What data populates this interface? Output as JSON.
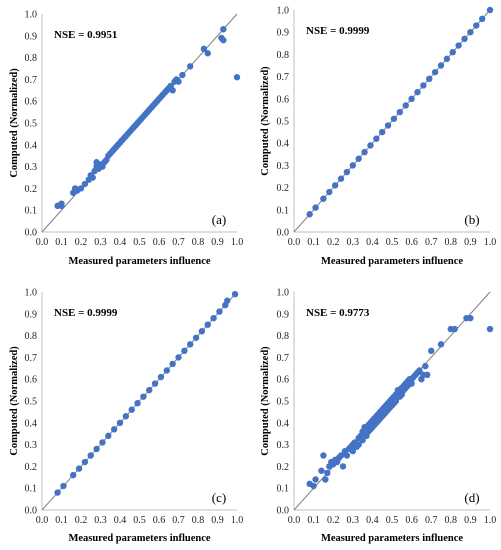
{
  "chart_data": [
    {
      "type": "scatter",
      "panel_label": "(a)",
      "annotation": "NSE = 0.9951",
      "xlabel": "Measured parameters influence",
      "ylabel": "Computed  (Normalized)",
      "xlim": [
        0,
        1
      ],
      "ylim": [
        0,
        1
      ],
      "xticks": [
        "0.0",
        "0.1",
        "0.2",
        "0.3",
        "0.4",
        "0.5",
        "0.6",
        "0.7",
        "0.8",
        "0.9",
        "1.0"
      ],
      "yticks": [
        "0.0",
        "0.1",
        "0.2",
        "0.3",
        "0.4",
        "0.5",
        "0.6",
        "0.7",
        "0.8",
        "0.9",
        "1.0"
      ],
      "grid": false,
      "reference_line": "y = x",
      "marker_color": "#4472C4",
      "x": [
        0.08,
        0.1,
        0.1,
        0.16,
        0.17,
        0.18,
        0.2,
        0.22,
        0.24,
        0.25,
        0.26,
        0.27,
        0.28,
        0.28,
        0.29,
        0.3,
        0.31,
        0.32,
        0.33,
        0.34,
        0.35,
        0.36,
        0.37,
        0.38,
        0.39,
        0.4,
        0.41,
        0.42,
        0.43,
        0.44,
        0.45,
        0.46,
        0.47,
        0.48,
        0.49,
        0.5,
        0.51,
        0.52,
        0.53,
        0.54,
        0.55,
        0.56,
        0.57,
        0.58,
        0.59,
        0.6,
        0.61,
        0.62,
        0.63,
        0.64,
        0.65,
        0.66,
        0.67,
        0.68,
        0.69,
        0.7,
        0.72,
        0.76,
        0.83,
        0.85,
        0.92,
        0.93,
        0.93,
        1.0
      ],
      "y": [
        0.12,
        0.12,
        0.13,
        0.18,
        0.2,
        0.19,
        0.2,
        0.22,
        0.24,
        0.26,
        0.25,
        0.28,
        0.3,
        0.32,
        0.29,
        0.31,
        0.3,
        0.32,
        0.33,
        0.35,
        0.36,
        0.37,
        0.38,
        0.39,
        0.4,
        0.41,
        0.42,
        0.43,
        0.44,
        0.45,
        0.46,
        0.47,
        0.48,
        0.49,
        0.5,
        0.51,
        0.52,
        0.53,
        0.54,
        0.55,
        0.56,
        0.57,
        0.58,
        0.59,
        0.6,
        0.61,
        0.62,
        0.63,
        0.64,
        0.65,
        0.66,
        0.67,
        0.65,
        0.69,
        0.7,
        0.69,
        0.72,
        0.76,
        0.84,
        0.82,
        0.89,
        0.93,
        0.88,
        0.71
      ]
    },
    {
      "type": "scatter",
      "panel_label": "(b)",
      "annotation": "NSE = 0.9999",
      "xlabel": "Measured parameters influence",
      "ylabel": "Computed  (Normalized)",
      "xlim": [
        0,
        1
      ],
      "ylim": [
        0,
        1
      ],
      "xticks": [
        "0.0",
        "0.1",
        "0.2",
        "0.3",
        "0.4",
        "0.5",
        "0.6",
        "0.7",
        "0.8",
        "0.9",
        "1.0"
      ],
      "yticks": [
        "0.0",
        "0.1",
        "0.2",
        "0.3",
        "0.4",
        "0.5",
        "0.6",
        "0.7",
        "0.8",
        "0.9",
        "1.0"
      ],
      "grid": false,
      "reference_line": "y = x",
      "marker_color": "#4472C4",
      "x": [
        0.08,
        0.11,
        0.15,
        0.18,
        0.21,
        0.24,
        0.27,
        0.3,
        0.33,
        0.36,
        0.39,
        0.42,
        0.45,
        0.48,
        0.51,
        0.54,
        0.57,
        0.6,
        0.63,
        0.66,
        0.69,
        0.72,
        0.75,
        0.78,
        0.81,
        0.84,
        0.87,
        0.9,
        0.93,
        0.96,
        1.0
      ],
      "y": [
        0.08,
        0.11,
        0.15,
        0.18,
        0.21,
        0.24,
        0.27,
        0.3,
        0.33,
        0.36,
        0.39,
        0.42,
        0.45,
        0.48,
        0.51,
        0.54,
        0.57,
        0.6,
        0.63,
        0.66,
        0.69,
        0.72,
        0.75,
        0.78,
        0.81,
        0.84,
        0.87,
        0.9,
        0.93,
        0.96,
        1.0
      ]
    },
    {
      "type": "scatter",
      "panel_label": "(c)",
      "annotation": "NSE = 0.9999",
      "xlabel": "Measured parameters influence",
      "ylabel": "Computed  (Normalized)",
      "xlim": [
        0,
        1
      ],
      "ylim": [
        0,
        1
      ],
      "xticks": [
        "0.0",
        "0.1",
        "0.2",
        "0.3",
        "0.4",
        "0.5",
        "0.6",
        "0.7",
        "0.8",
        "0.9",
        "1.0"
      ],
      "yticks": [
        "0.0",
        "0.1",
        "0.2",
        "0.3",
        "0.4",
        "0.5",
        "0.6",
        "0.7",
        "0.8",
        "0.9",
        "1.0"
      ],
      "grid": false,
      "reference_line": "y = x",
      "marker_color": "#4472C4",
      "x": [
        0.08,
        0.11,
        0.16,
        0.19,
        0.22,
        0.25,
        0.28,
        0.31,
        0.34,
        0.37,
        0.4,
        0.43,
        0.46,
        0.49,
        0.52,
        0.55,
        0.58,
        0.61,
        0.64,
        0.67,
        0.7,
        0.73,
        0.76,
        0.79,
        0.82,
        0.85,
        0.88,
        0.91,
        0.94,
        0.95,
        0.99
      ],
      "y": [
        0.08,
        0.11,
        0.16,
        0.19,
        0.22,
        0.25,
        0.28,
        0.31,
        0.34,
        0.37,
        0.4,
        0.43,
        0.46,
        0.49,
        0.52,
        0.55,
        0.58,
        0.61,
        0.64,
        0.67,
        0.7,
        0.73,
        0.76,
        0.79,
        0.82,
        0.85,
        0.88,
        0.91,
        0.94,
        0.96,
        0.99
      ]
    },
    {
      "type": "scatter",
      "panel_label": "(d)",
      "annotation": "NSE = 0.9773",
      "xlabel": "Measured parameters influence",
      "ylabel": "Computed  (Normalized)",
      "xlim": [
        0,
        1
      ],
      "ylim": [
        0,
        1
      ],
      "xticks": [
        "0.0",
        "0.1",
        "0.2",
        "0.3",
        "0.4",
        "0.5",
        "0.6",
        "0.7",
        "0.8",
        "0.9",
        "1.0"
      ],
      "yticks": [
        "0.0",
        "0.1",
        "0.2",
        "0.3",
        "0.4",
        "0.5",
        "0.6",
        "0.7",
        "0.8",
        "0.9",
        "1.0"
      ],
      "grid": false,
      "reference_line": "y = x",
      "marker_color": "#4472C4",
      "x": [
        0.08,
        0.1,
        0.11,
        0.14,
        0.15,
        0.16,
        0.17,
        0.18,
        0.19,
        0.2,
        0.21,
        0.22,
        0.23,
        0.24,
        0.25,
        0.26,
        0.27,
        0.28,
        0.29,
        0.3,
        0.3,
        0.31,
        0.32,
        0.33,
        0.33,
        0.34,
        0.35,
        0.35,
        0.36,
        0.36,
        0.37,
        0.37,
        0.38,
        0.38,
        0.39,
        0.39,
        0.4,
        0.4,
        0.41,
        0.41,
        0.42,
        0.42,
        0.43,
        0.43,
        0.44,
        0.44,
        0.45,
        0.45,
        0.46,
        0.46,
        0.47,
        0.47,
        0.48,
        0.48,
        0.49,
        0.49,
        0.5,
        0.5,
        0.51,
        0.51,
        0.52,
        0.52,
        0.53,
        0.53,
        0.54,
        0.54,
        0.55,
        0.55,
        0.56,
        0.56,
        0.57,
        0.57,
        0.58,
        0.58,
        0.59,
        0.6,
        0.6,
        0.61,
        0.62,
        0.63,
        0.64,
        0.65,
        0.66,
        0.67,
        0.68,
        0.7,
        0.75,
        0.8,
        0.82,
        0.88,
        0.9,
        1.0
      ],
      "y": [
        0.12,
        0.11,
        0.14,
        0.18,
        0.25,
        0.14,
        0.17,
        0.2,
        0.22,
        0.21,
        0.23,
        0.22,
        0.24,
        0.25,
        0.2,
        0.27,
        0.25,
        0.28,
        0.29,
        0.3,
        0.27,
        0.31,
        0.29,
        0.33,
        0.3,
        0.34,
        0.36,
        0.32,
        0.35,
        0.38,
        0.37,
        0.34,
        0.39,
        0.36,
        0.4,
        0.37,
        0.41,
        0.38,
        0.42,
        0.39,
        0.43,
        0.4,
        0.44,
        0.41,
        0.45,
        0.42,
        0.46,
        0.43,
        0.47,
        0.44,
        0.48,
        0.45,
        0.49,
        0.46,
        0.5,
        0.47,
        0.51,
        0.48,
        0.52,
        0.49,
        0.53,
        0.5,
        0.54,
        0.55,
        0.55,
        0.52,
        0.56,
        0.53,
        0.57,
        0.55,
        0.58,
        0.56,
        0.59,
        0.57,
        0.6,
        0.6,
        0.58,
        0.61,
        0.62,
        0.63,
        0.64,
        0.6,
        0.62,
        0.66,
        0.62,
        0.73,
        0.76,
        0.83,
        0.83,
        0.88,
        0.88,
        0.83
      ]
    }
  ]
}
